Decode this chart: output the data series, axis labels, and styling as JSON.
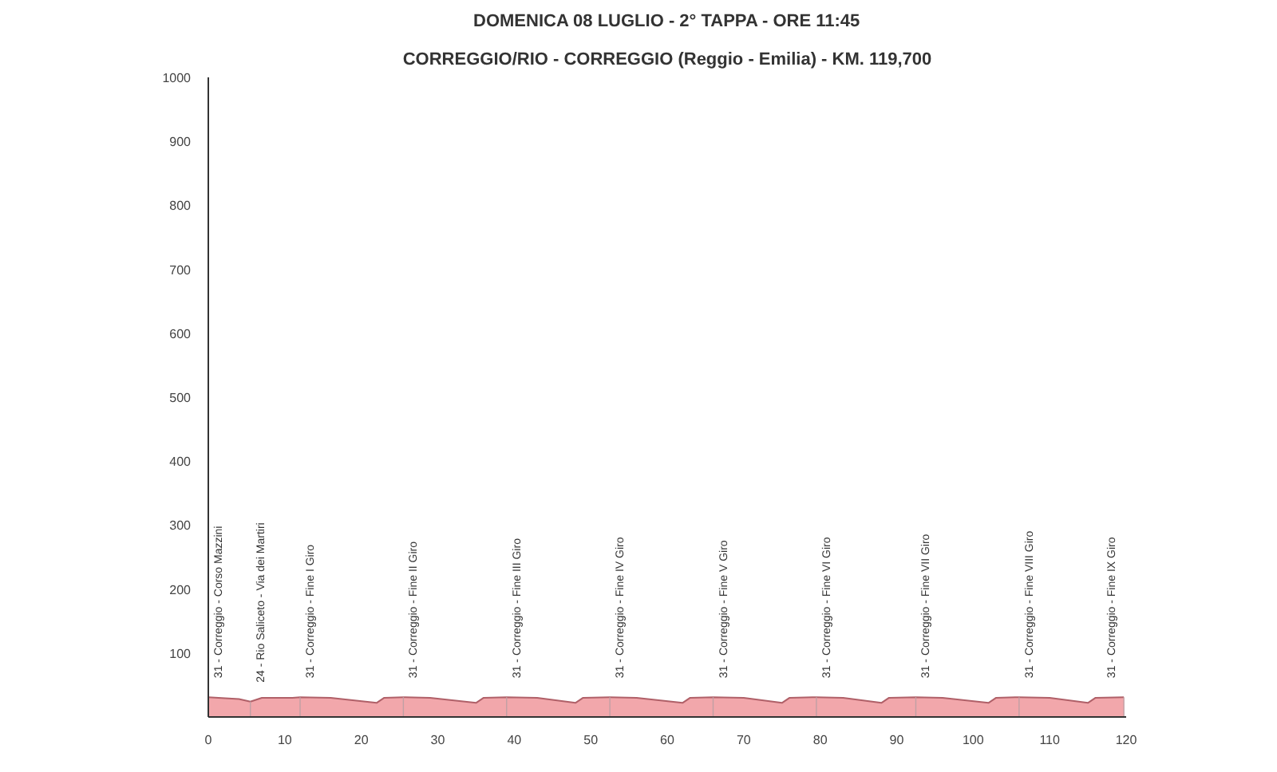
{
  "chart_data": {
    "type": "area",
    "title": "DOMENICA 08 LUGLIO - 2° TAPPA - ORE 11:45",
    "subtitle": "CORREGGIO/RIO - CORREGGIO (Reggio - Emilia) - KM. 119,700",
    "x": [
      0,
      4,
      5.5,
      7,
      11,
      12,
      16,
      22,
      23,
      25.5,
      29,
      35,
      36,
      39,
      43,
      48,
      49,
      52.5,
      56,
      62,
      63,
      66,
      70,
      75,
      76,
      79.5,
      83,
      88,
      89,
      92.5,
      96,
      102,
      103,
      106,
      110,
      115,
      116,
      119.7
    ],
    "series": [
      {
        "color": "#f2a7ab",
        "values": [
          31,
          28,
          24,
          30,
          30,
          31,
          30,
          22,
          30,
          31,
          30,
          22,
          30,
          31,
          30,
          22,
          30,
          31,
          30,
          22,
          30,
          31,
          30,
          22,
          30,
          31,
          30,
          22,
          30,
          31,
          30,
          22,
          30,
          31,
          30,
          22,
          30,
          31
        ]
      }
    ],
    "xlim": [
      0,
      120
    ],
    "xticks": [
      0,
      10,
      20,
      30,
      40,
      50,
      60,
      70,
      80,
      90,
      100,
      110,
      120
    ],
    "ylim": [
      0,
      1000
    ],
    "yticks": [
      100,
      200,
      300,
      400,
      500,
      600,
      700,
      800,
      900,
      1000
    ],
    "grid": false,
    "annotations": [
      {
        "text": "31 - Correggio - Corso Mazzini",
        "x": 0,
        "y": 31
      },
      {
        "text": "24 - Rio Saliceto - Via dei Martiri",
        "x": 5.5,
        "y": 24
      },
      {
        "text": "31 - Correggio - Fine I Giro",
        "x": 12,
        "y": 31
      },
      {
        "text": "31 - Correggio - Fine II Giro",
        "x": 25.5,
        "y": 31
      },
      {
        "text": "31 - Correggio - Fine III Giro",
        "x": 39,
        "y": 31
      },
      {
        "text": "31 - Correggio - Fine IV Giro",
        "x": 52.5,
        "y": 31
      },
      {
        "text": "31 - Correggio - Fine V Giro",
        "x": 66,
        "y": 31
      },
      {
        "text": "31 - Correggio - Fine VI Giro",
        "x": 79.5,
        "y": 31
      },
      {
        "text": "31 - Correggio - Fine VII Giro",
        "x": 92.5,
        "y": 31
      },
      {
        "text": "31 - Correggio - Fine VIII Giro",
        "x": 106,
        "y": 31
      },
      {
        "text": "31 - Correggio - Fine IX Giro",
        "x": 119.7,
        "y": 31
      }
    ]
  }
}
